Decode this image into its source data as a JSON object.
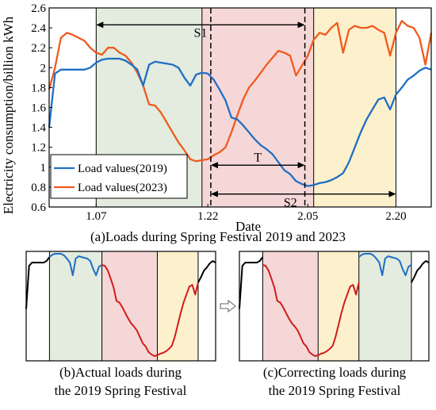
{
  "colors": {
    "load_2019": "#1f6fc5",
    "load_2023": "#f05a1e",
    "green_shade": "#e3ecdf",
    "red_shade": "#f6d7d7",
    "yellow_shade": "#fdf0cc",
    "actual_red": "#d01c1c",
    "arrow_outline": "#606060"
  },
  "arrow_icon": "hollow-right-arrow",
  "chart_a": {
    "ylabel": "Electricity consumption/billion kWh",
    "xlabel": "Date",
    "caption": "(a)Loads during Spring Festival 2019 and 2023",
    "legend": [
      "Load values(2019)",
      "Load values(2023)"
    ],
    "annotations": {
      "s1": "S1",
      "s2": "S2",
      "t": "T"
    }
  },
  "chart_b": {
    "caption_line1": "(b)Actual loads during",
    "caption_line2": "the 2019 Spring Festival"
  },
  "chart_c": {
    "caption_line1": "(c)Correcting loads during",
    "caption_line2": "the 2019 Spring Festival"
  },
  "chart_data": [
    {
      "type": "line",
      "title": "(a)Loads during Spring Festival 2019 and 2023",
      "xlabel": "Date",
      "ylabel": "Electricity consumption/billion kWh",
      "ylim": [
        0.6,
        2.6
      ],
      "yticks": [
        0.6,
        0.8,
        1,
        1.2,
        1.4,
        1.6,
        1.8,
        2,
        2.2,
        2.4,
        2.6
      ],
      "x_range": [
        1,
        66
      ],
      "xtick_positions": [
        9,
        28,
        45,
        60
      ],
      "xtick_labels": [
        "1.07",
        "1.22",
        "2.05",
        "2.20"
      ],
      "grid": false,
      "legend_position": "bottom-left",
      "shaded_regions": [
        {
          "x": [
            9,
            27
          ],
          "color": "green"
        },
        {
          "x": [
            27,
            46
          ],
          "color": "red"
        },
        {
          "x": [
            46,
            60
          ],
          "color": "yellow"
        }
      ],
      "dashed_lines_x": [
        28.5,
        44.5
      ],
      "annotations": [
        {
          "text": "S1",
          "from_x": 9,
          "to_x": 44.5,
          "y": 2.43
        },
        {
          "text": "T",
          "from_x": 28.5,
          "to_x": 44.5,
          "y": 1.02
        },
        {
          "text": "S2",
          "from_x": 28.5,
          "to_x": 60,
          "y": 0.73
        }
      ],
      "series": [
        {
          "name": "Load values(2019)",
          "x": [
            1,
            2,
            3,
            4,
            5,
            6,
            7,
            8,
            9,
            10,
            11,
            12,
            13,
            14,
            15,
            16,
            17,
            18,
            19,
            20,
            21,
            22,
            23,
            24,
            25,
            26,
            27,
            28,
            29,
            30,
            31,
            32,
            33,
            34,
            35,
            36,
            37,
            38,
            39,
            40,
            41,
            42,
            43,
            44,
            45,
            46,
            47,
            48,
            49,
            50,
            51,
            52,
            53,
            54,
            55,
            56,
            57,
            58,
            59,
            60,
            61,
            62,
            63,
            64,
            65,
            66
          ],
          "y": [
            1.4,
            1.94,
            1.98,
            1.98,
            1.98,
            1.98,
            1.98,
            2.0,
            2.05,
            2.08,
            2.09,
            2.09,
            2.09,
            2.07,
            2.03,
            1.98,
            1.82,
            2.03,
            2.06,
            2.05,
            2.04,
            2.03,
            2.0,
            1.9,
            1.82,
            1.93,
            1.95,
            1.94,
            1.88,
            1.78,
            1.67,
            1.5,
            1.48,
            1.42,
            1.35,
            1.28,
            1.22,
            1.18,
            1.13,
            1.05,
            0.97,
            0.93,
            0.86,
            0.83,
            0.81,
            0.82,
            0.84,
            0.85,
            0.87,
            0.9,
            0.94,
            1.05,
            1.2,
            1.35,
            1.48,
            1.58,
            1.68,
            1.7,
            1.58,
            1.73,
            1.8,
            1.88,
            1.92,
            1.97,
            2.0,
            1.98
          ]
        },
        {
          "name": "Load values(2023)",
          "x": [
            1,
            2,
            3,
            4,
            5,
            6,
            7,
            8,
            9,
            10,
            11,
            12,
            13,
            14,
            15,
            16,
            17,
            18,
            19,
            20,
            21,
            22,
            23,
            24,
            25,
            26,
            27,
            28,
            29,
            30,
            31,
            32,
            33,
            34,
            35,
            36,
            37,
            38,
            39,
            40,
            41,
            42,
            43,
            44,
            45,
            46,
            47,
            48,
            49,
            50,
            51,
            52,
            53,
            54,
            55,
            56,
            57,
            58,
            59,
            60,
            61,
            62,
            63,
            64,
            65,
            66
          ],
          "y": [
            1.78,
            2.0,
            2.3,
            2.35,
            2.33,
            2.3,
            2.27,
            2.2,
            2.15,
            2.13,
            2.2,
            2.2,
            2.15,
            2.12,
            2.05,
            1.95,
            1.82,
            1.63,
            1.62,
            1.55,
            1.45,
            1.35,
            1.25,
            1.17,
            1.08,
            1.06,
            1.07,
            1.08,
            1.12,
            1.15,
            1.2,
            1.35,
            1.52,
            1.68,
            1.8,
            1.87,
            1.95,
            2.03,
            2.1,
            2.17,
            2.15,
            2.12,
            1.92,
            2.02,
            2.12,
            2.28,
            2.35,
            2.33,
            2.4,
            2.45,
            2.15,
            2.38,
            2.42,
            2.4,
            2.4,
            2.42,
            2.38,
            2.35,
            2.12,
            2.35,
            2.47,
            2.42,
            2.4,
            2.3,
            2.03,
            2.35
          ]
        }
      ]
    }
  ]
}
